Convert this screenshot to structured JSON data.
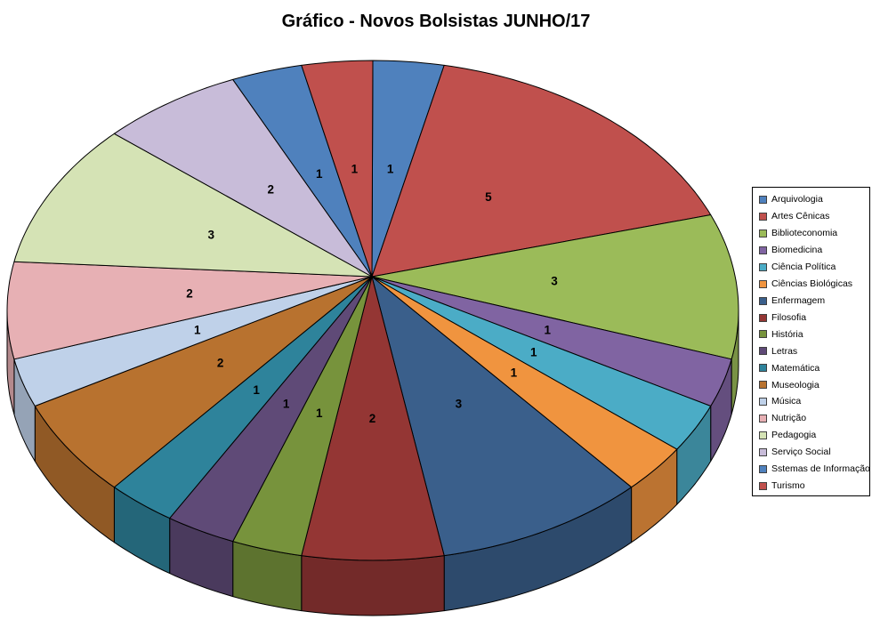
{
  "chart_data": {
    "type": "pie",
    "variant": "3d",
    "title": "Gráfico - Novos Bolsistas JUNHO/17",
    "categories": [
      "Arquivologia",
      "Artes Cênicas",
      "Biblioteconomia",
      "Biomedicina",
      "Ciência Política",
      "Ciências Biológicas",
      "Enfermagem",
      "Filosofia",
      "História",
      "Letras",
      "Matemática",
      "Museologia",
      "Música",
      "Nutrição",
      "Pedagogia",
      "Serviço Social",
      "Sstemas de Informação",
      "Turismo"
    ],
    "values": [
      1,
      5,
      3,
      1,
      1,
      1,
      3,
      2,
      1,
      1,
      1,
      2,
      1,
      2,
      3,
      2,
      1,
      1
    ],
    "colors": [
      "#4F81BD",
      "#C0504D",
      "#9BBB59",
      "#8064A2",
      "#4BACC6",
      "#F0943F",
      "#3A5F8B",
      "#943634",
      "#77933C",
      "#5F4A77",
      "#2E839B",
      "#B8722F",
      "#BFD1E9",
      "#E7B0B4",
      "#D5E3B5",
      "#C8BCD9",
      "#4F81BD",
      "#C0504D"
    ],
    "data_labels": "value",
    "label_color": "#000000",
    "legend_position": "right",
    "start_angle_deg": 0,
    "direction": "clockwise",
    "background": "#FFFFFF"
  }
}
